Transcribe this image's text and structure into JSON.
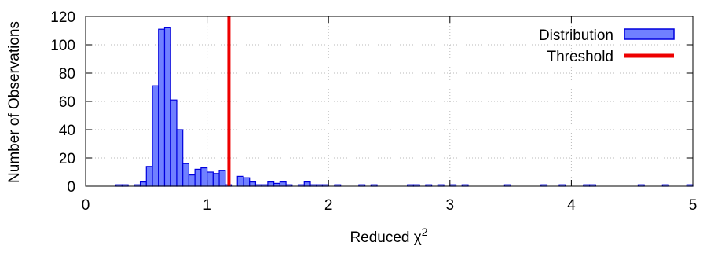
{
  "chart_data": {
    "type": "bar",
    "title": "",
    "xlabel": "Reduced χ",
    "xlabel_superscript": "2",
    "ylabel": "Number of Observations",
    "xlim": [
      0,
      5
    ],
    "ylim": [
      0,
      120
    ],
    "x_ticks": [
      "0",
      "1",
      "2",
      "3",
      "4",
      "5"
    ],
    "y_ticks": [
      "0",
      "20",
      "40",
      "60",
      "80",
      "100",
      "120"
    ],
    "grid": true,
    "legend_placement": "top-right",
    "bin_width": 0.05,
    "series": [
      {
        "name": "Distribution",
        "color": "#7080ff",
        "edge_color": "#0000dd",
        "bin_starts": [
          0.25,
          0.3,
          0.4,
          0.45,
          0.5,
          0.55,
          0.6,
          0.65,
          0.7,
          0.75,
          0.8,
          0.85,
          0.9,
          0.95,
          1.0,
          1.05,
          1.1,
          1.15,
          1.25,
          1.3,
          1.35,
          1.4,
          1.45,
          1.5,
          1.55,
          1.6,
          1.65,
          1.75,
          1.8,
          1.85,
          1.9,
          1.95,
          2.05,
          2.25,
          2.35,
          2.65,
          2.7,
          2.8,
          2.9,
          3.0,
          3.1,
          3.45,
          3.75,
          3.9,
          4.1,
          4.15,
          4.55,
          4.75,
          4.95
        ],
        "values": [
          1,
          1,
          1,
          3,
          14,
          71,
          111,
          112,
          61,
          40,
          16,
          8,
          12,
          13,
          10,
          9,
          11,
          1,
          7,
          6,
          3,
          1,
          1,
          3,
          2,
          3,
          1,
          1,
          3,
          1,
          1,
          1,
          1,
          1,
          1,
          1,
          1,
          1,
          1,
          1,
          1,
          1,
          1,
          1,
          1,
          1,
          1,
          1,
          1
        ]
      }
    ],
    "threshold": {
      "name": "Threshold",
      "x": 1.18,
      "color": "#ee0000"
    }
  }
}
